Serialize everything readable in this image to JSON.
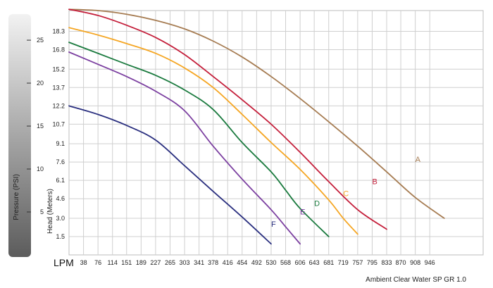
{
  "chart_data": {
    "type": "line",
    "xlabel": "LPM",
    "ylabel": "Head (Meters)",
    "y2label": "Pressure (PSI)",
    "footer": "Ambient Clear Water SP GR 1.0",
    "x_ticks": [
      "38",
      "76",
      "114",
      "151",
      "189",
      "227",
      "265",
      "303",
      "341",
      "378",
      "416",
      "454",
      "492",
      "530",
      "568",
      "606",
      "643",
      "681",
      "719",
      "757",
      "795",
      "833",
      "870",
      "908",
      "946"
    ],
    "y_ticks": [
      "1.5",
      "3.0",
      "4.6",
      "6.1",
      "7.6",
      "9.1",
      "10.7",
      "12.2",
      "13.7",
      "15.2",
      "16.8",
      "18.3"
    ],
    "psi_ticks": [
      "5",
      "10",
      "15",
      "20",
      "25"
    ],
    "xlim": [
      0,
      1086
    ],
    "ylim": [
      0,
      20
    ],
    "grid": true,
    "series": [
      {
        "name": "A",
        "color": "#a67c52",
        "label_at": [
          908,
          7.6
        ],
        "points": [
          [
            0,
            20.1
          ],
          [
            76,
            20.0
          ],
          [
            151,
            19.7
          ],
          [
            227,
            19.2
          ],
          [
            303,
            18.5
          ],
          [
            378,
            17.5
          ],
          [
            454,
            16.2
          ],
          [
            530,
            14.6
          ],
          [
            606,
            12.8
          ],
          [
            681,
            10.9
          ],
          [
            757,
            8.9
          ],
          [
            833,
            6.8
          ],
          [
            908,
            4.7
          ],
          [
            984,
            3.0
          ]
        ]
      },
      {
        "name": "B",
        "color": "#c41e3a",
        "label_at": [
          795,
          5.8
        ],
        "points": [
          [
            0,
            20.1
          ],
          [
            76,
            19.6
          ],
          [
            151,
            18.8
          ],
          [
            227,
            17.8
          ],
          [
            303,
            16.4
          ],
          [
            378,
            14.6
          ],
          [
            454,
            12.7
          ],
          [
            530,
            10.7
          ],
          [
            606,
            8.4
          ],
          [
            681,
            6.0
          ],
          [
            757,
            3.7
          ],
          [
            833,
            2.1
          ]
        ]
      },
      {
        "name": "C",
        "color": "#f5a623",
        "label_at": [
          719,
          4.8
        ],
        "points": [
          [
            0,
            18.6
          ],
          [
            76,
            18.0
          ],
          [
            151,
            17.3
          ],
          [
            227,
            16.5
          ],
          [
            303,
            15.3
          ],
          [
            378,
            13.7
          ],
          [
            454,
            11.5
          ],
          [
            530,
            9.2
          ],
          [
            606,
            7.0
          ],
          [
            681,
            4.5
          ],
          [
            719,
            3.0
          ],
          [
            757,
            1.7
          ]
        ]
      },
      {
        "name": "D",
        "color": "#1a7a3e",
        "label_at": [
          643,
          4.0
        ],
        "points": [
          [
            0,
            17.4
          ],
          [
            76,
            16.5
          ],
          [
            151,
            15.6
          ],
          [
            227,
            14.7
          ],
          [
            303,
            13.5
          ],
          [
            378,
            11.9
          ],
          [
            454,
            9.2
          ],
          [
            530,
            6.8
          ],
          [
            568,
            5.3
          ],
          [
            606,
            3.8
          ],
          [
            681,
            1.5
          ]
        ]
      },
      {
        "name": "E",
        "color": "#7b3fa0",
        "label_at": [
          606,
          3.3
        ],
        "points": [
          [
            0,
            16.6
          ],
          [
            76,
            15.6
          ],
          [
            151,
            14.6
          ],
          [
            227,
            13.4
          ],
          [
            303,
            11.8
          ],
          [
            378,
            8.9
          ],
          [
            454,
            6.2
          ],
          [
            530,
            3.7
          ],
          [
            568,
            2.3
          ],
          [
            606,
            0.9
          ]
        ]
      },
      {
        "name": "F",
        "color": "#2a2f7f",
        "label_at": [
          530,
          2.3
        ],
        "points": [
          [
            0,
            12.2
          ],
          [
            76,
            11.5
          ],
          [
            151,
            10.6
          ],
          [
            227,
            9.4
          ],
          [
            303,
            7.3
          ],
          [
            378,
            5.2
          ],
          [
            454,
            3.1
          ],
          [
            530,
            0.9
          ]
        ]
      }
    ]
  }
}
